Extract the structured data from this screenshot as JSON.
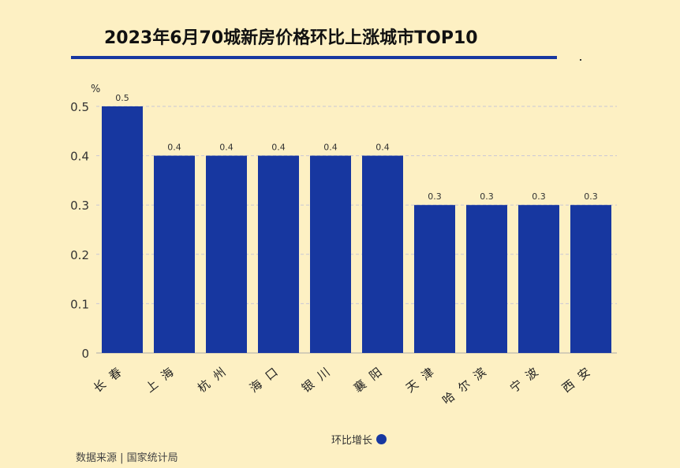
{
  "title": "2023年6月70城新房价格环比上涨城市TOP10",
  "source": "数据来源 | 国家统计局",
  "colors": {
    "bar": "#1737A0",
    "background": "#FDF0C3"
  },
  "chart_data": {
    "type": "bar",
    "title": "2023年6月70城新房价格环比上涨城市TOP10",
    "ylabel": "%",
    "ylim": [
      0,
      0.5
    ],
    "yticks": [
      "0",
      "0.1",
      "0.2",
      "0.3",
      "0.4",
      "0.5"
    ],
    "categories": [
      "长春",
      "上海",
      "杭州",
      "海口",
      "银川",
      "襄阳",
      "天津",
      "哈尔滨",
      "宁波",
      "西安"
    ],
    "series": [
      {
        "name": "环比增长",
        "values": [
          0.5,
          0.4,
          0.4,
          0.4,
          0.4,
          0.4,
          0.3,
          0.3,
          0.3,
          0.3
        ]
      }
    ],
    "data_labels": [
      "0.5",
      "0.4",
      "0.4",
      "0.4",
      "0.4",
      "0.4",
      "0.3",
      "0.3",
      "0.3",
      "0.3"
    ],
    "grid": true,
    "legend": "bottom-center"
  }
}
